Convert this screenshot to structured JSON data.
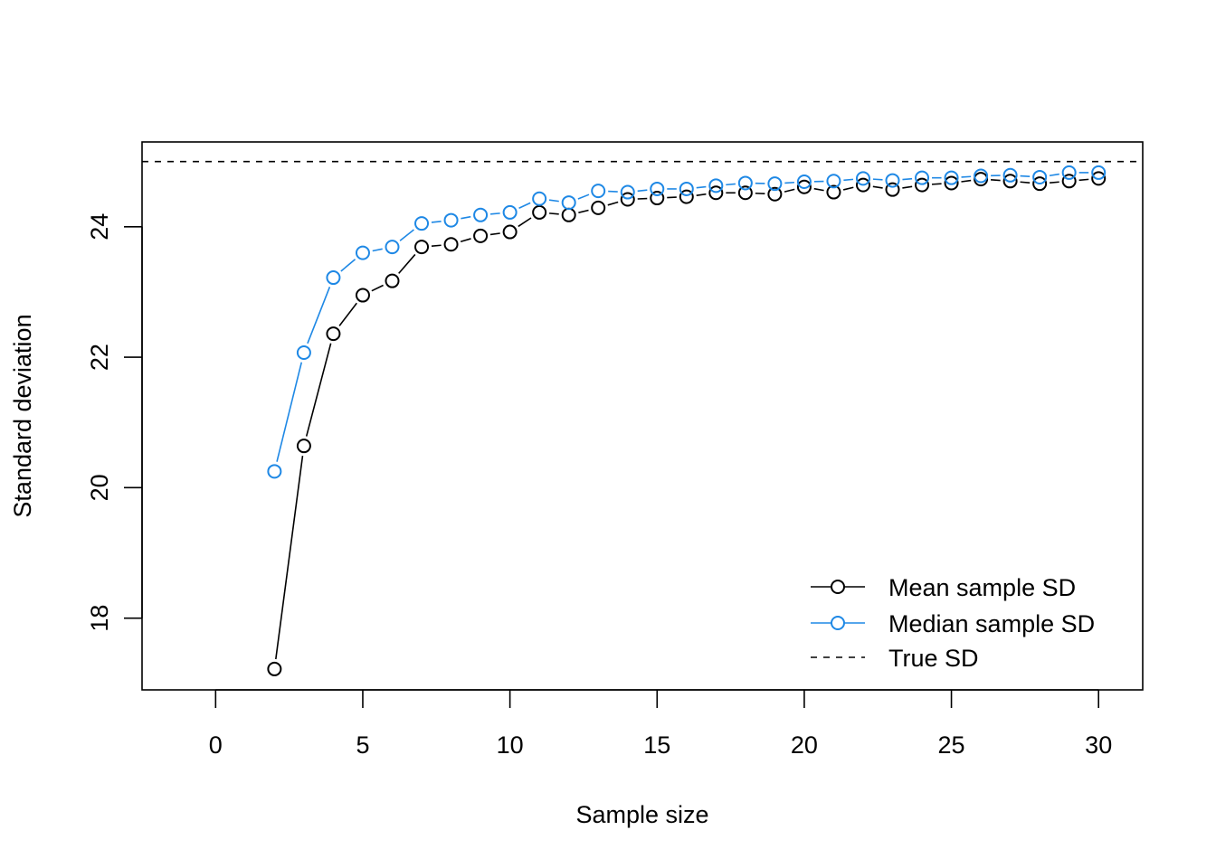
{
  "chart_data": {
    "type": "line",
    "title": "",
    "xlabel": "Sample size",
    "ylabel": "Standard deviation",
    "xlim": [
      -2.5,
      31.5
    ],
    "ylim": [
      16.9,
      25.3
    ],
    "x_ticks": [
      0,
      5,
      10,
      15,
      20,
      25,
      30
    ],
    "y_ticks": [
      18,
      20,
      22,
      24
    ],
    "grid": false,
    "legend_position": "bottom-right",
    "x": [
      2,
      3,
      4,
      5,
      6,
      7,
      8,
      9,
      10,
      11,
      12,
      13,
      14,
      15,
      16,
      17,
      18,
      19,
      20,
      21,
      22,
      23,
      24,
      25,
      26,
      27,
      28,
      29,
      30
    ],
    "series": [
      {
        "name": "Mean sample SD",
        "color": "#000000",
        "marker": "open-circle",
        "line": "solid",
        "values": [
          17.22,
          20.64,
          22.36,
          22.95,
          23.17,
          23.69,
          23.73,
          23.86,
          23.92,
          24.22,
          24.18,
          24.29,
          24.42,
          24.44,
          24.46,
          24.52,
          24.52,
          24.5,
          24.61,
          24.53,
          24.64,
          24.57,
          24.64,
          24.67,
          24.73,
          24.7,
          24.66,
          24.7,
          24.74
        ]
      },
      {
        "name": "Median sample SD",
        "color": "#1E88E5",
        "marker": "open-circle",
        "line": "solid",
        "values": [
          20.25,
          22.07,
          23.22,
          23.6,
          23.69,
          24.05,
          24.1,
          24.18,
          24.22,
          24.43,
          24.37,
          24.55,
          24.53,
          24.58,
          24.58,
          24.63,
          24.67,
          24.66,
          24.69,
          24.7,
          24.74,
          24.71,
          24.75,
          24.75,
          24.78,
          24.79,
          24.76,
          24.83,
          24.83
        ]
      },
      {
        "name": "True SD",
        "color": "#000000",
        "marker": "none",
        "line": "dashed",
        "constant": 25
      }
    ]
  }
}
